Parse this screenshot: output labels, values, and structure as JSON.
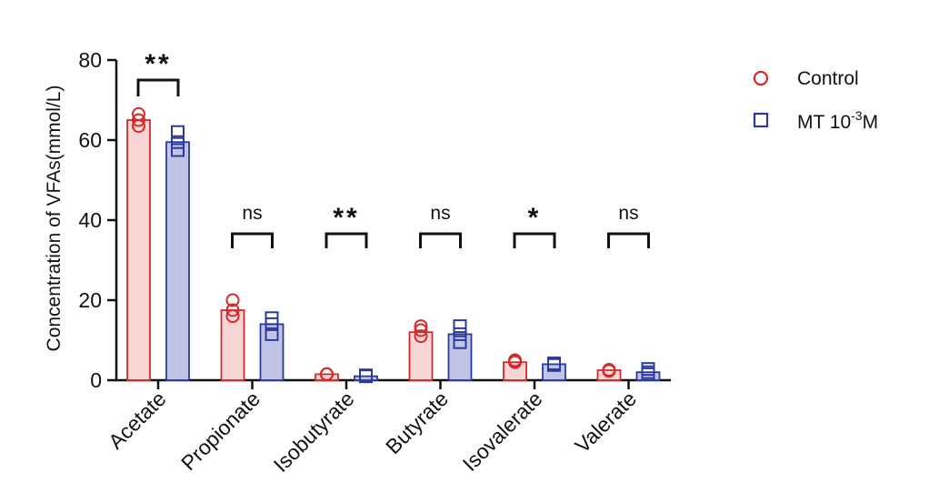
{
  "chart_data": {
    "type": "bar",
    "ylabel": "Concentration of VFAs(mmol/L)",
    "ylim": [
      0,
      80
    ],
    "yticks": [
      0,
      20,
      40,
      60,
      80
    ],
    "categories": [
      "Acetate",
      "Propionate",
      "Isobutyrate",
      "Butyrate",
      "Isovalerate",
      "Valerate"
    ],
    "series": [
      {
        "name": "Control",
        "marker": "circle",
        "color": "#d42a2a",
        "fill": "#f9d6d6",
        "values": [
          65.0,
          17.5,
          1.5,
          12.0,
          4.5,
          2.5
        ],
        "points": [
          [
            63.5,
            65.0,
            66.5
          ],
          [
            16.0,
            17.5,
            20.0
          ],
          [
            1.5,
            1.5,
            1.5
          ],
          [
            11.0,
            12.5,
            13.5
          ],
          [
            4.5,
            4.8,
            5.0
          ],
          [
            2.3,
            2.5,
            2.6
          ]
        ]
      },
      {
        "name_prefix": "MT 10",
        "name_sup": "-3",
        "name_suffix": "M",
        "marker": "square",
        "color": "#2a3a9c",
        "fill": "#c2c4e6",
        "values": [
          59.5,
          14.0,
          1.0,
          11.5,
          4.0,
          2.0
        ],
        "points": [
          [
            57.5,
            59.5,
            62.0
          ],
          [
            11.5,
            14.0,
            15.5
          ],
          [
            1.0,
            1.0,
            1.2
          ],
          [
            9.5,
            11.5,
            13.5
          ],
          [
            3.8,
            4.0,
            4.2
          ],
          [
            1.5,
            2.0,
            2.8
          ]
        ]
      }
    ],
    "annotations": [
      "**",
      "ns",
      "**",
      "ns",
      "*",
      "ns"
    ],
    "legend_position": "top-right",
    "grid": false
  }
}
